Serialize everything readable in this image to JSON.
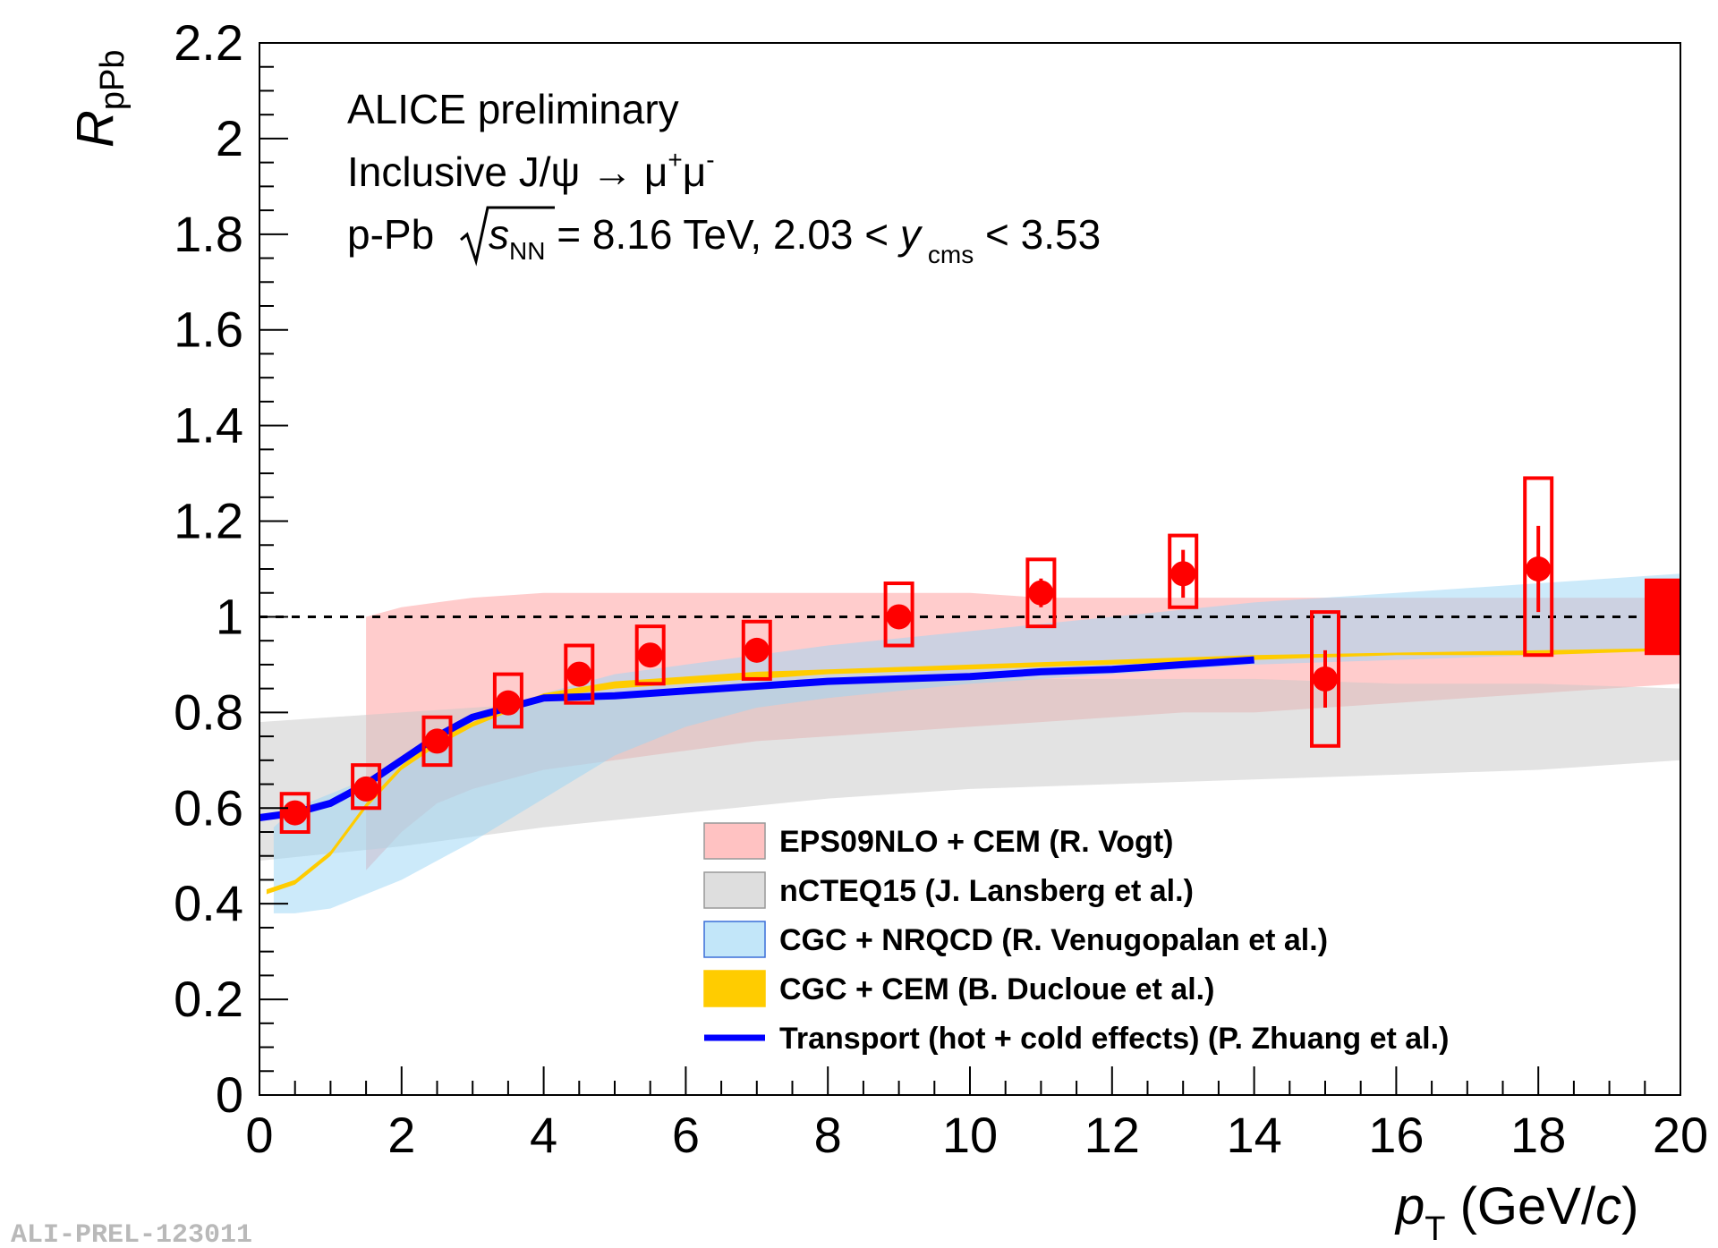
{
  "chart_data": {
    "type": "scatter",
    "xlabel": {
      "symbol": "p",
      "sub": "T",
      "unit_open": " (GeV/",
      "unit_var": "c",
      "unit_close": ")"
    },
    "ylabel": {
      "symbol": "R",
      "sub": "pPb"
    },
    "xlim": [
      0,
      20
    ],
    "ylim": [
      0,
      2.2
    ],
    "x_ticks": [
      0,
      2,
      4,
      6,
      8,
      10,
      12,
      14,
      16,
      18,
      20
    ],
    "y_ticks": [
      0,
      0.2,
      0.4,
      0.6,
      0.8,
      1,
      1.2,
      1.4,
      1.6,
      1.8,
      2,
      2.2
    ],
    "x_tick_labels": [
      "0",
      "2",
      "4",
      "6",
      "8",
      "10",
      "12",
      "14",
      "16",
      "18",
      "20"
    ],
    "y_tick_labels": [
      "0",
      "0.2",
      "0.4",
      "0.6",
      "0.8",
      "1",
      "1.2",
      "1.4",
      "1.6",
      "1.8",
      "2",
      "2.2"
    ],
    "annotations": {
      "line1": "ALICE preliminary",
      "line2_a": "Inclusive J/ψ → μ",
      "line2_sup1": "+",
      "line2_b": "μ",
      "line2_sup2": "-",
      "line3_a": "p-Pb ",
      "line3_s": "s",
      "line3_nn": "NN",
      "line3_b": " = 8.16 TeV, 2.03 < ",
      "line3_y": "y",
      "line3_cms": "cms",
      "line3_c": " < 3.53"
    },
    "reference_line": 1,
    "global_uncertainty": [
      0.92,
      1.08
    ],
    "data_series": {
      "name": "ALICE inclusive J/psi",
      "color": "#ff0000",
      "points": [
        {
          "x": 0.5,
          "y": 0.59,
          "stat": 0.02,
          "sys_lo": 0.55,
          "sys_hi": 0.63
        },
        {
          "x": 1.5,
          "y": 0.64,
          "stat": 0.02,
          "sys_lo": 0.6,
          "sys_hi": 0.69
        },
        {
          "x": 2.5,
          "y": 0.74,
          "stat": 0.02,
          "sys_lo": 0.69,
          "sys_hi": 0.79
        },
        {
          "x": 3.5,
          "y": 0.82,
          "stat": 0.02,
          "sys_lo": 0.77,
          "sys_hi": 0.88
        },
        {
          "x": 4.5,
          "y": 0.88,
          "stat": 0.02,
          "sys_lo": 0.82,
          "sys_hi": 0.94
        },
        {
          "x": 5.5,
          "y": 0.92,
          "stat": 0.02,
          "sys_lo": 0.86,
          "sys_hi": 0.98
        },
        {
          "x": 7,
          "y": 0.93,
          "stat": 0.02,
          "sys_lo": 0.87,
          "sys_hi": 0.99
        },
        {
          "x": 9,
          "y": 1.0,
          "stat": 0.02,
          "sys_lo": 0.94,
          "sys_hi": 1.07
        },
        {
          "x": 11,
          "y": 1.05,
          "stat": 0.03,
          "sys_lo": 0.98,
          "sys_hi": 1.12
        },
        {
          "x": 13,
          "y": 1.09,
          "stat": 0.05,
          "sys_lo": 1.02,
          "sys_hi": 1.17
        },
        {
          "x": 15,
          "y": 0.87,
          "stat": 0.06,
          "sys_lo": 0.73,
          "sys_hi": 1.01
        },
        {
          "x": 18,
          "y": 1.1,
          "stat": 0.09,
          "sys_lo": 0.92,
          "sys_hi": 1.29
        }
      ]
    },
    "models": [
      {
        "name": "EPS09NLO + CEM (R. Vogt)",
        "kind": "band",
        "color": "#ff9999",
        "x": [
          1.5,
          2,
          2.5,
          3,
          4,
          5,
          6,
          7,
          8,
          9,
          10,
          11,
          12,
          13,
          14,
          15,
          16,
          17,
          18,
          19,
          20
        ],
        "lower": [
          0.47,
          0.55,
          0.61,
          0.64,
          0.68,
          0.7,
          0.72,
          0.74,
          0.75,
          0.76,
          0.77,
          0.78,
          0.79,
          0.8,
          0.8,
          0.81,
          0.82,
          0.83,
          0.84,
          0.85,
          0.86
        ],
        "upper": [
          1.0,
          1.02,
          1.03,
          1.04,
          1.05,
          1.05,
          1.05,
          1.05,
          1.05,
          1.05,
          1.05,
          1.04,
          1.04,
          1.04,
          1.04,
          1.04,
          1.04,
          1.04,
          1.04,
          1.04,
          1.04
        ]
      },
      {
        "name": "nCTEQ15 (J. Lansberg et al.)",
        "kind": "band",
        "color": "#c8c8c8",
        "x": [
          0,
          2,
          4,
          6,
          8,
          10,
          12,
          14,
          16,
          18,
          20
        ],
        "lower": [
          0.49,
          0.52,
          0.56,
          0.59,
          0.62,
          0.64,
          0.65,
          0.66,
          0.67,
          0.68,
          0.7
        ],
        "upper": [
          0.78,
          0.8,
          0.82,
          0.84,
          0.86,
          0.87,
          0.87,
          0.87,
          0.86,
          0.86,
          0.85
        ]
      },
      {
        "name": "CGC + NRQCD (R. Venugopalan et al.)",
        "kind": "band",
        "color": "#99d6f5",
        "x": [
          0.2,
          0.5,
          1,
          1.5,
          2,
          3,
          4,
          5,
          6,
          7,
          8,
          10,
          12,
          14,
          16,
          18,
          20
        ],
        "lower": [
          0.38,
          0.38,
          0.39,
          0.42,
          0.45,
          0.53,
          0.62,
          0.71,
          0.77,
          0.81,
          0.83,
          0.86,
          0.88,
          0.9,
          0.91,
          0.92,
          0.93
        ],
        "upper": [
          0.56,
          0.6,
          0.63,
          0.66,
          0.7,
          0.78,
          0.84,
          0.88,
          0.9,
          0.92,
          0.94,
          0.97,
          1.0,
          1.03,
          1.05,
          1.07,
          1.09
        ]
      },
      {
        "name": "CGC + CEM (B. Ducloue et al.)",
        "kind": "band",
        "color": "#ffcc00",
        "x": [
          0.1,
          0.5,
          1,
          1.5,
          2,
          2.5,
          3,
          4,
          5,
          6,
          7,
          8,
          10,
          12,
          14,
          16,
          18,
          20
        ],
        "lower": [
          0.42,
          0.44,
          0.5,
          0.6,
          0.68,
          0.73,
          0.77,
          0.83,
          0.85,
          0.86,
          0.87,
          0.88,
          0.89,
          0.9,
          0.91,
          0.92,
          0.92,
          0.93
        ],
        "upper": [
          0.43,
          0.45,
          0.51,
          0.61,
          0.69,
          0.745,
          0.78,
          0.84,
          0.865,
          0.875,
          0.885,
          0.89,
          0.9,
          0.91,
          0.92,
          0.925,
          0.93,
          0.935
        ]
      },
      {
        "name": "Transport (hot + cold effects) (P. Zhuang et al.)",
        "kind": "line",
        "color": "#0000ff",
        "x": [
          0,
          0.5,
          1,
          1.5,
          2,
          2.5,
          3,
          3.5,
          4,
          5,
          6,
          7,
          8,
          9,
          10,
          11,
          12,
          13,
          14
        ],
        "y": [
          0.58,
          0.59,
          0.61,
          0.65,
          0.7,
          0.75,
          0.79,
          0.81,
          0.83,
          0.835,
          0.845,
          0.855,
          0.865,
          0.87,
          0.875,
          0.885,
          0.89,
          0.9,
          0.91
        ]
      }
    ]
  },
  "watermark": "ALI-PREL-123011"
}
